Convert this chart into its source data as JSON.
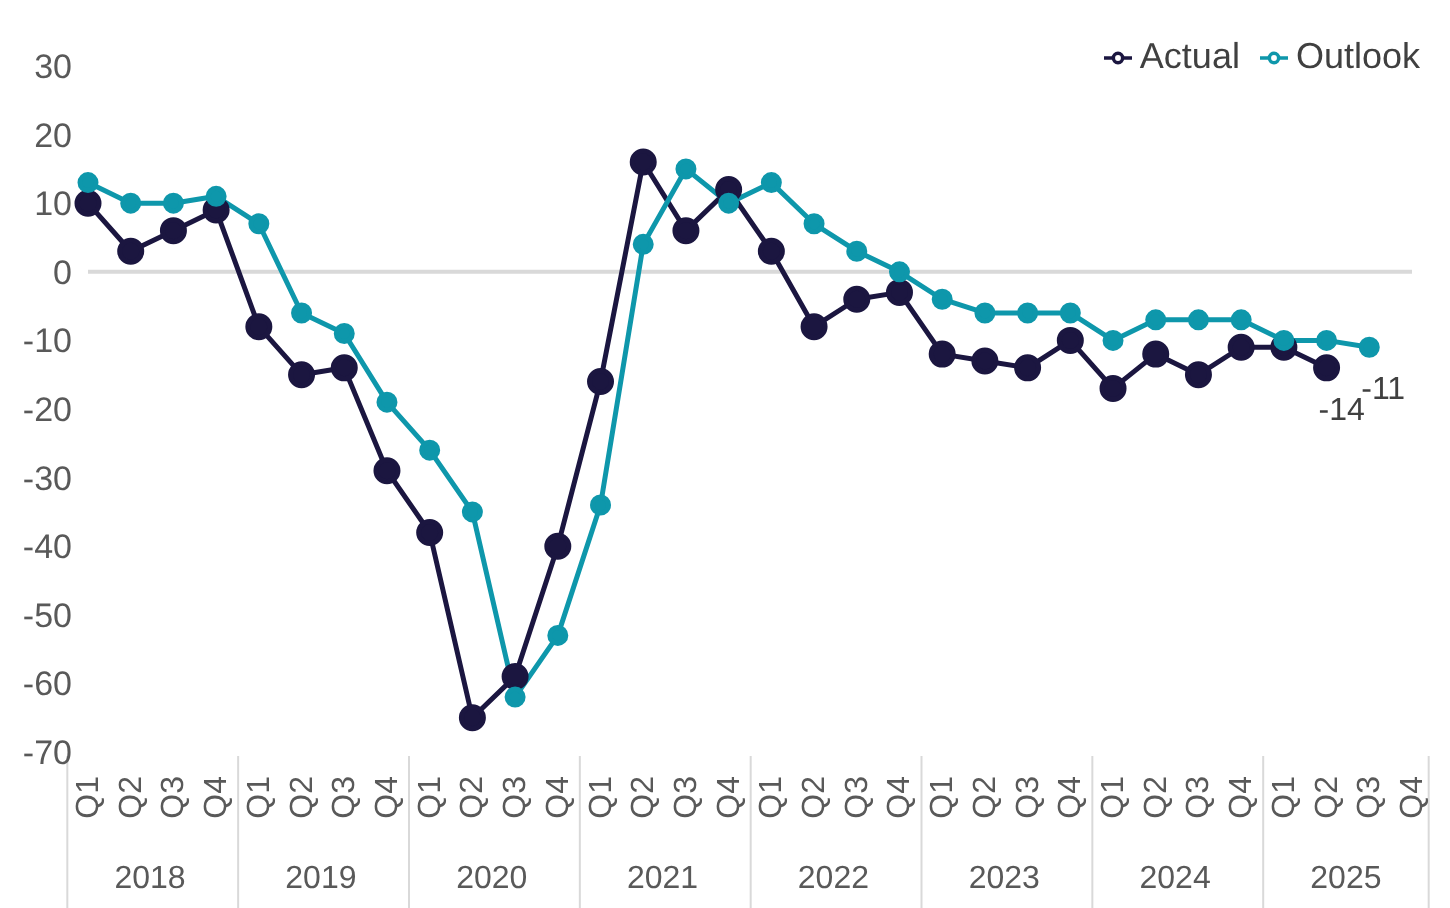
{
  "chart_data": {
    "type": "line",
    "categories": [
      "Q1",
      "Q2",
      "Q3",
      "Q4",
      "Q1",
      "Q2",
      "Q3",
      "Q4",
      "Q1",
      "Q2",
      "Q3",
      "Q4",
      "Q1",
      "Q2",
      "Q3",
      "Q4",
      "Q1",
      "Q2",
      "Q3",
      "Q4",
      "Q1",
      "Q2",
      "Q3",
      "Q4",
      "Q1",
      "Q2",
      "Q3",
      "Q4",
      "Q1",
      "Q2",
      "Q3",
      "Q4"
    ],
    "annotations": [
      "2018",
      "2019",
      "2020",
      "2021",
      "2022",
      "2023",
      "2024",
      "2025"
    ],
    "series": [
      {
        "name": "Actual",
        "color": "#1b1640",
        "values": [
          10,
          3,
          6,
          9,
          -8,
          -15,
          -14,
          -29,
          -38,
          -65,
          -59,
          -40,
          -16,
          16,
          6,
          12,
          3,
          -8,
          -4,
          -3,
          -12,
          -13,
          -14,
          -10,
          -17,
          -12,
          -15,
          -11,
          -11,
          -14,
          null,
          null
        ],
        "value_labels": [
          null,
          null,
          null,
          null,
          null,
          null,
          null,
          null,
          null,
          null,
          null,
          null,
          null,
          null,
          null,
          null,
          null,
          null,
          null,
          null,
          null,
          null,
          null,
          null,
          null,
          null,
          null,
          null,
          null,
          "-14",
          null,
          null
        ]
      },
      {
        "name": "Outlook",
        "color": "#0e97ab",
        "values": [
          13,
          10,
          10,
          11,
          7,
          -6,
          -9,
          -19,
          -26,
          -35,
          -62,
          -53,
          -34,
          4,
          15,
          10,
          13,
          7,
          3,
          0,
          -4,
          -6,
          -6,
          -6,
          -10,
          -7,
          -7,
          -7,
          -10,
          -10,
          -11,
          null
        ],
        "value_labels": [
          null,
          null,
          null,
          null,
          null,
          null,
          null,
          null,
          null,
          null,
          null,
          null,
          null,
          null,
          null,
          null,
          null,
          null,
          null,
          null,
          null,
          null,
          null,
          null,
          null,
          null,
          null,
          null,
          null,
          null,
          "-11",
          null
        ]
      }
    ],
    "ylim": [
      -70,
      30
    ],
    "yticks": [
      -70,
      -60,
      -50,
      -40,
      -30,
      -20,
      -10,
      0,
      10,
      20,
      30
    ],
    "ref_lines": [
      {
        "axis": "y",
        "value": 0,
        "color": "#d9d9d9"
      }
    ],
    "grid": false,
    "legend": "top right",
    "marker": "circle",
    "line_style": "solid"
  }
}
